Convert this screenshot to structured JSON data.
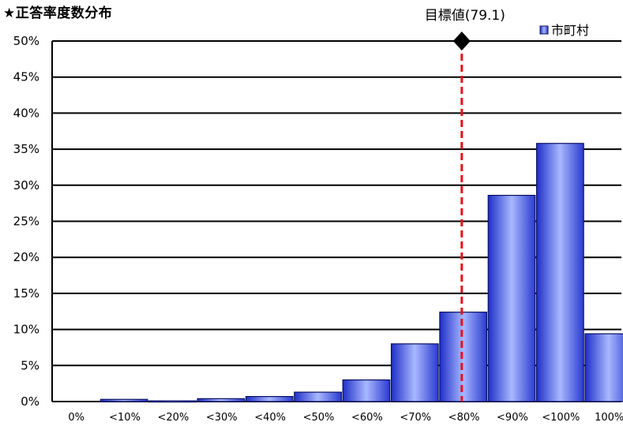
{
  "chart_data": {
    "type": "bar",
    "title": "★正答率度数分布",
    "categories": [
      "0%",
      "<10%",
      "<20%",
      "<30%",
      "<40%",
      "<50%",
      "<60%",
      "<70%",
      "<80%",
      "<90%",
      "<100%",
      "100%"
    ],
    "series": [
      {
        "name": "市町村",
        "values": [
          0,
          0.3,
          0.1,
          0.4,
          0.7,
          1.3,
          3.0,
          8.0,
          12.4,
          28.6,
          35.8,
          9.4
        ],
        "color": "#4a6cf0"
      }
    ],
    "ylim": [
      0,
      50
    ],
    "yticks": [
      "0%",
      "5%",
      "10%",
      "15%",
      "20%",
      "25%",
      "30%",
      "35%",
      "40%",
      "45%",
      "50%"
    ],
    "ytick_values": [
      0,
      5,
      10,
      15,
      20,
      25,
      30,
      35,
      40,
      45,
      50
    ],
    "grid": true,
    "legend_position": "top-right",
    "target": {
      "label": "目標値(79.1)",
      "value": 79.1,
      "line_color": "#e8121b"
    }
  }
}
